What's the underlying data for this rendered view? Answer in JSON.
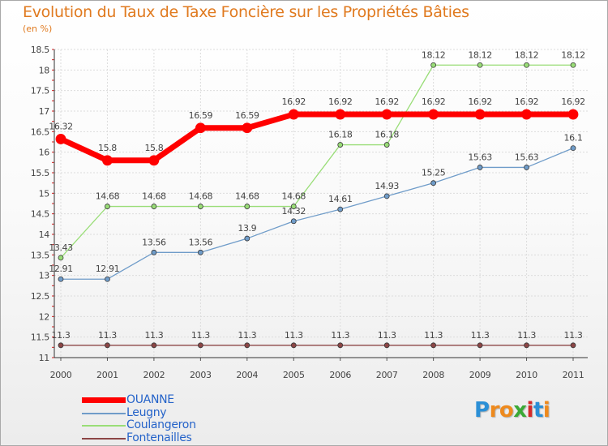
{
  "chart_data": {
    "type": "line",
    "title": "Evolution du Taux de Taxe Foncière sur les Propriétés Bâties",
    "ylabel": "(en %)",
    "xlabel": "",
    "categories": [
      "2000",
      "2001",
      "2002",
      "2003",
      "2004",
      "2005",
      "2006",
      "2007",
      "2008",
      "2009",
      "2010",
      "2011"
    ],
    "ylim": [
      11,
      18.5
    ],
    "yticks": [
      "11",
      "11.5",
      "12",
      "12.5",
      "13",
      "13.5",
      "14",
      "14.5",
      "15",
      "15.5",
      "16",
      "16.5",
      "17",
      "17.5",
      "18",
      "18.5"
    ],
    "grid": true,
    "legend_position": "bottom-left",
    "series": [
      {
        "name": "OUANNE",
        "color": "#ff0000",
        "values": [
          16.32,
          15.8,
          15.8,
          16.59,
          16.59,
          16.92,
          16.92,
          16.92,
          16.92,
          16.92,
          16.92,
          16.92
        ],
        "labels": [
          "16.32",
          "15.8",
          "15.8",
          "16.59",
          "16.59",
          "16.92",
          "16.92",
          "16.92",
          "16.92",
          "16.92",
          "16.92",
          "16.92"
        ]
      },
      {
        "name": "Leugny",
        "color": "#6f9cc9",
        "values": [
          12.91,
          12.91,
          13.56,
          13.56,
          13.9,
          14.32,
          14.61,
          14.93,
          15.25,
          15.63,
          15.63,
          16.1
        ],
        "labels": [
          "12.91",
          "12.91",
          "13.56",
          "13.56",
          "13.9",
          "14.32",
          "14.61",
          "14.93",
          "15.25",
          "15.63",
          "15.63",
          "16.1"
        ]
      },
      {
        "name": "Coulangeron",
        "color": "#99dd77",
        "values": [
          13.43,
          14.68,
          14.68,
          14.68,
          14.68,
          14.68,
          16.18,
          16.18,
          18.12,
          18.12,
          18.12,
          18.12
        ],
        "labels": [
          "13.43",
          "14.68",
          "14.68",
          "14.68",
          "14.68",
          "14.68",
          "16.18",
          "16.18",
          "18.12",
          "18.12",
          "18.12",
          "18.12"
        ]
      },
      {
        "name": "Fontenailles",
        "color": "#8c4646",
        "values": [
          11.3,
          11.3,
          11.3,
          11.3,
          11.3,
          11.3,
          11.3,
          11.3,
          11.3,
          11.3,
          11.3,
          11.3
        ],
        "labels": [
          "11.3",
          "11.3",
          "11.3",
          "11.3",
          "11.3",
          "11.3",
          "11.3",
          "11.3",
          "11.3",
          "11.3",
          "11.3",
          "11.3"
        ]
      }
    ]
  },
  "legend": [
    {
      "label": "OUANNE",
      "color": "#ff0000"
    },
    {
      "label": "Leugny",
      "color": "#6f9cc9"
    },
    {
      "label": "Coulangeron",
      "color": "#99dd77"
    },
    {
      "label": "Fontenailles",
      "color": "#8c4646"
    }
  ],
  "logo": {
    "letters": [
      "P",
      "r",
      "o",
      "x",
      "i",
      "t",
      "i"
    ],
    "colors": [
      "#2b8fd6",
      "#ee8a1d",
      "#ee8a1d",
      "#3aa935",
      "#d42a2a",
      "#2b8fd6",
      "#ee8a1d"
    ]
  }
}
